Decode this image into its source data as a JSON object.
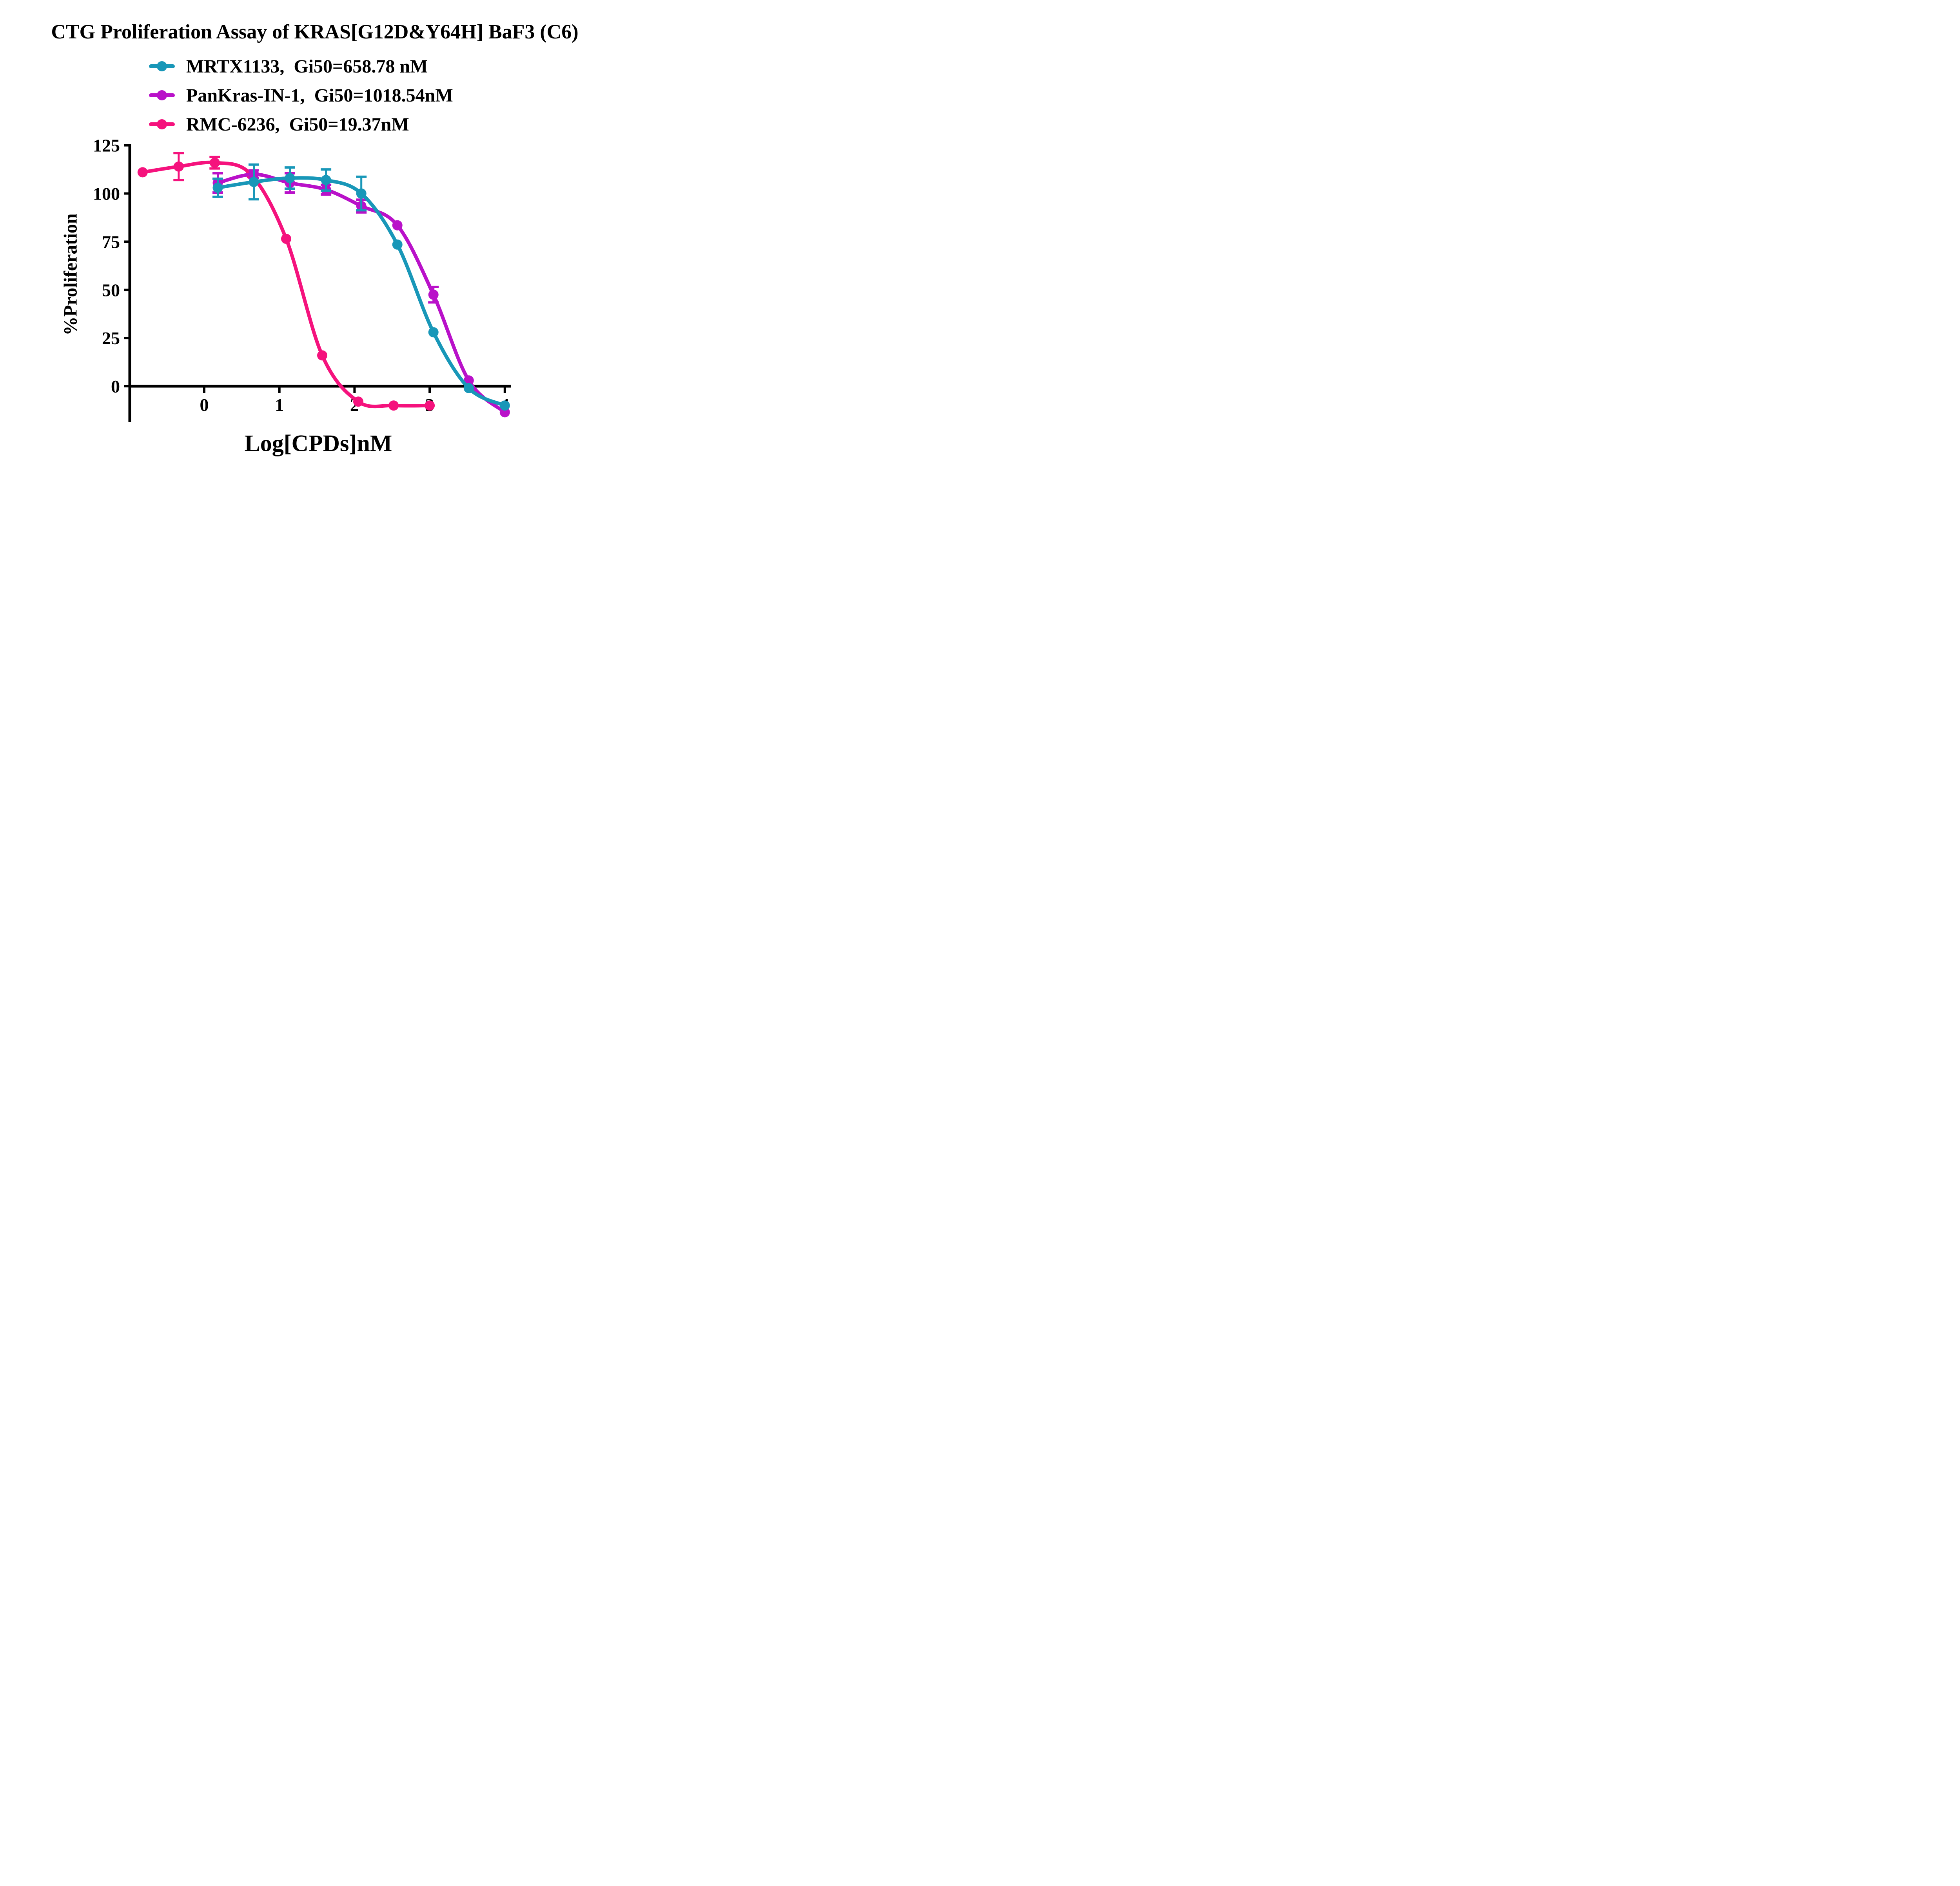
{
  "title": {
    "text": "CTG Proliferation Assay of KRAS[G12D&Y64H] BaF3 (C6)"
  },
  "legend": {
    "items": [
      {
        "text": "MRTX1133,  Gi50=658.78 nM",
        "color": "#1897B8"
      },
      {
        "text": "PanKras-IN-1,  Gi50=1018.54nM",
        "color": "#B911C9"
      },
      {
        "text": "RMC-6236,  Gi50=19.37nM",
        "color": "#F5127D"
      }
    ]
  },
  "colors": {
    "teal": "#1897B8",
    "magenta": "#B911C9",
    "pink": "#F5127D",
    "axis": "#000000",
    "background": "#FFFFFF"
  },
  "chart_data": {
    "type": "line",
    "title": "CTG Proliferation Assay of KRAS[G12D&Y64H] BaF3 (C6)",
    "xlabel": "Log[CPDs]nM",
    "ylabel": "%Proliferation",
    "x_ticks": [
      0,
      1,
      2,
      3,
      4
    ],
    "y_ticks": [
      0,
      25,
      50,
      75,
      100,
      125
    ],
    "xlim": [
      -1.0,
      4.1
    ],
    "ylim": [
      -21,
      125
    ],
    "x_axis_at_y": 0,
    "grid": false,
    "legend_position": "top-left",
    "series": [
      {
        "name": "MRTX1133",
        "gi50": "658.78 nM",
        "color": "#1897B8",
        "log_x": [
          0.18,
          0.66,
          1.14,
          1.62,
          2.09,
          2.57,
          3.05,
          3.52,
          4.0
        ],
        "y": [
          103,
          106,
          108,
          107,
          100,
          73.5,
          28,
          -1,
          -10
        ],
        "err": [
          4.7,
          9,
          5.5,
          5.5,
          8.7,
          null,
          null,
          null,
          null
        ]
      },
      {
        "name": "PanKras-IN-1",
        "gi50": "1018.54nM",
        "color": "#B911C9",
        "log_x": [
          0.18,
          0.66,
          1.14,
          1.62,
          2.09,
          2.57,
          3.05,
          3.52,
          4.0
        ],
        "y": [
          105.5,
          110,
          105.5,
          102,
          93.5,
          83.5,
          47.5,
          3,
          -13.5
        ],
        "err": [
          5,
          2,
          5,
          2.5,
          3.3,
          null,
          4,
          null,
          null
        ]
      },
      {
        "name": "RMC-6236",
        "gi50": "19.37nM",
        "color": "#F5127D",
        "log_x": [
          -0.82,
          -0.34,
          0.14,
          0.62,
          1.09,
          1.57,
          2.05,
          2.52,
          3.0
        ],
        "y": [
          111,
          114,
          116,
          110,
          76.5,
          16,
          -8,
          -10,
          -10
        ],
        "err": [
          null,
          7,
          3,
          null,
          null,
          null,
          null,
          null,
          null
        ]
      }
    ],
    "draw_order": [
      "RMC-6236",
      "PanKras-IN-1",
      "MRTX1133"
    ]
  }
}
